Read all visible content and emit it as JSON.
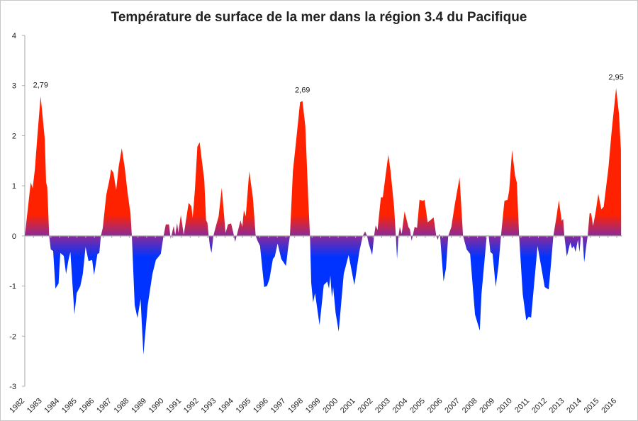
{
  "chart_data": {
    "type": "area",
    "title": "Température de surface de la mer dans la région 3.4 du Pacifique",
    "xlabel": "",
    "ylabel": "",
    "ylim": [
      -3,
      4
    ],
    "yticks": [
      "-3",
      "-2",
      "-1",
      "0",
      "1",
      "2",
      "3",
      "4"
    ],
    "xlim": [
      1982,
      2016.3
    ],
    "xticks": [
      "1982",
      "1983",
      "1984",
      "1985",
      "1986",
      "1987",
      "1988",
      "1989",
      "1990",
      "1991",
      "1992",
      "1993",
      "1994",
      "1995",
      "1996",
      "1997",
      "1998",
      "1999",
      "2000",
      "2001",
      "2002",
      "2003",
      "2004",
      "2005",
      "2006",
      "2007",
      "2008",
      "2009",
      "2010",
      "2011",
      "2012",
      "2013",
      "2014",
      "2015",
      "2016"
    ],
    "grid": false,
    "legend": "none",
    "colors": {
      "positive": "#ff2200",
      "zero": "#8a2a9a",
      "negative": "#0033ff"
    },
    "annotations": [
      {
        "x": 1982.91,
        "y": 2.79,
        "text": "2,79"
      },
      {
        "x": 1997.95,
        "y": 2.69,
        "text": "2,69"
      },
      {
        "x": 2015.96,
        "y": 2.95,
        "text": "2,95"
      }
    ],
    "points": [
      [
        1982.0,
        0
      ],
      [
        1982.34,
        1.07
      ],
      [
        1982.45,
        0.95
      ],
      [
        1982.58,
        1.33
      ],
      [
        1982.72,
        1.99
      ],
      [
        1982.91,
        2.79
      ],
      [
        1983.15,
        1.93
      ],
      [
        1983.22,
        1.07
      ],
      [
        1983.29,
        0.97
      ],
      [
        1983.4,
        0
      ],
      [
        1983.49,
        -0.27
      ],
      [
        1983.63,
        -0.3
      ],
      [
        1983.76,
        -1.05
      ],
      [
        1983.94,
        -0.95
      ],
      [
        1984.04,
        -0.34
      ],
      [
        1984.24,
        -0.4
      ],
      [
        1984.37,
        -0.76
      ],
      [
        1984.51,
        -0.48
      ],
      [
        1984.62,
        -0.32
      ],
      [
        1984.85,
        -1.57
      ],
      [
        1984.98,
        -1.14
      ],
      [
        1985.19,
        -1.0
      ],
      [
        1985.33,
        -0.76
      ],
      [
        1985.49,
        -0.22
      ],
      [
        1985.66,
        -0.5
      ],
      [
        1985.87,
        -0.48
      ],
      [
        1985.98,
        -0.78
      ],
      [
        1986.17,
        -0.36
      ],
      [
        1986.28,
        -0.34
      ],
      [
        1986.37,
        0
      ],
      [
        1986.48,
        0.16
      ],
      [
        1986.68,
        0.82
      ],
      [
        1986.85,
        1.1
      ],
      [
        1986.96,
        1.33
      ],
      [
        1987.09,
        1.26
      ],
      [
        1987.25,
        0.91
      ],
      [
        1987.39,
        1.38
      ],
      [
        1987.57,
        1.75
      ],
      [
        1987.74,
        1.36
      ],
      [
        1987.9,
        0.87
      ],
      [
        1988.07,
        0.44
      ],
      [
        1988.15,
        0
      ],
      [
        1988.31,
        -1.38
      ],
      [
        1988.47,
        -1.64
      ],
      [
        1988.65,
        -1.26
      ],
      [
        1988.81,
        -2.37
      ],
      [
        1989.06,
        -1.38
      ],
      [
        1989.33,
        -0.76
      ],
      [
        1989.53,
        -0.48
      ],
      [
        1989.81,
        -0.36
      ],
      [
        1989.97,
        0
      ],
      [
        1990.1,
        0.23
      ],
      [
        1990.28,
        0.23
      ],
      [
        1990.38,
        -0.06
      ],
      [
        1990.55,
        0.2
      ],
      [
        1990.64,
        0.02
      ],
      [
        1990.75,
        0.26
      ],
      [
        1990.82,
        0.06
      ],
      [
        1990.96,
        0.42
      ],
      [
        1991.13,
        0.02
      ],
      [
        1991.41,
        0.66
      ],
      [
        1991.57,
        0.59
      ],
      [
        1991.64,
        0.36
      ],
      [
        1991.77,
        0.93
      ],
      [
        1991.91,
        1.78
      ],
      [
        1992.04,
        1.87
      ],
      [
        1992.31,
        1.11
      ],
      [
        1992.41,
        0.31
      ],
      [
        1992.49,
        0.26
      ],
      [
        1992.56,
        0
      ],
      [
        1992.63,
        -0.2
      ],
      [
        1992.72,
        -0.34
      ],
      [
        1992.83,
        0
      ],
      [
        1992.95,
        0.16
      ],
      [
        1993.13,
        0.39
      ],
      [
        1993.31,
        0.96
      ],
      [
        1993.53,
        0.06
      ],
      [
        1993.67,
        0.23
      ],
      [
        1993.85,
        0.25
      ],
      [
        1993.98,
        0.06
      ],
      [
        1994.08,
        -0.12
      ],
      [
        1994.21,
        0.06
      ],
      [
        1994.39,
        0.31
      ],
      [
        1994.49,
        0.18
      ],
      [
        1994.58,
        0.51
      ],
      [
        1994.69,
        0.39
      ],
      [
        1994.89,
        1.29
      ],
      [
        1995.1,
        0.77
      ],
      [
        1995.26,
        0
      ],
      [
        1995.37,
        -0.1
      ],
      [
        1995.51,
        -0.2
      ],
      [
        1995.75,
        -1.02
      ],
      [
        1995.91,
        -1.0
      ],
      [
        1996.05,
        -0.86
      ],
      [
        1996.25,
        -0.46
      ],
      [
        1996.36,
        -0.41
      ],
      [
        1996.52,
        -0.15
      ],
      [
        1996.73,
        -0.46
      ],
      [
        1997.0,
        -0.6
      ],
      [
        1997.13,
        -0.22
      ],
      [
        1997.23,
        0
      ],
      [
        1997.4,
        1.29
      ],
      [
        1997.61,
        1.99
      ],
      [
        1997.81,
        2.67
      ],
      [
        1997.95,
        2.69
      ],
      [
        1998.11,
        2.19
      ],
      [
        1998.29,
        0.65
      ],
      [
        1998.38,
        0
      ],
      [
        1998.45,
        -0.93
      ],
      [
        1998.56,
        -1.33
      ],
      [
        1998.67,
        -1.14
      ],
      [
        1998.93,
        -1.78
      ],
      [
        1999.17,
        -0.98
      ],
      [
        1999.37,
        -0.91
      ],
      [
        1999.47,
        -1.05
      ],
      [
        1999.55,
        -0.79
      ],
      [
        1999.64,
        -1.23
      ],
      [
        1999.71,
        -1.02
      ],
      [
        1999.85,
        -1.53
      ],
      [
        2000.03,
        -1.91
      ],
      [
        2000.32,
        -0.76
      ],
      [
        2000.6,
        -0.38
      ],
      [
        2000.93,
        -0.98
      ],
      [
        2001.21,
        -0.32
      ],
      [
        2001.41,
        0
      ],
      [
        2001.55,
        0.09
      ],
      [
        2001.66,
        0
      ],
      [
        2001.75,
        -0.15
      ],
      [
        2001.95,
        -0.38
      ],
      [
        2002.06,
        0
      ],
      [
        2002.15,
        0.21
      ],
      [
        2002.26,
        0.12
      ],
      [
        2002.45,
        0.77
      ],
      [
        2002.56,
        0.77
      ],
      [
        2002.7,
        1.15
      ],
      [
        2002.88,
        1.62
      ],
      [
        2003.01,
        1.29
      ],
      [
        2003.21,
        0.58
      ],
      [
        2003.31,
        0
      ],
      [
        2003.38,
        -0.46
      ],
      [
        2003.46,
        0
      ],
      [
        2003.54,
        0.18
      ],
      [
        2003.65,
        0.04
      ],
      [
        2003.81,
        0.49
      ],
      [
        2004.03,
        0.18
      ],
      [
        2004.12,
        0.13
      ],
      [
        2004.22,
        -0.1
      ],
      [
        2004.39,
        0.18
      ],
      [
        2004.53,
        0.16
      ],
      [
        2004.67,
        0.72
      ],
      [
        2004.87,
        0.7
      ],
      [
        2004.96,
        0.72
      ],
      [
        2005.14,
        0.27
      ],
      [
        2005.28,
        0.31
      ],
      [
        2005.48,
        0.37
      ],
      [
        2005.63,
        0
      ],
      [
        2005.73,
        -0.08
      ],
      [
        2005.79,
        0.04
      ],
      [
        2005.85,
        0
      ],
      [
        2006.05,
        -0.91
      ],
      [
        2006.19,
        -0.65
      ],
      [
        2006.32,
        0
      ],
      [
        2006.5,
        0.18
      ],
      [
        2006.7,
        0.63
      ],
      [
        2006.97,
        1.17
      ],
      [
        2007.17,
        0
      ],
      [
        2007.38,
        -0.27
      ],
      [
        2007.58,
        -0.36
      ],
      [
        2007.86,
        -1.57
      ],
      [
        2008.13,
        -1.89
      ],
      [
        2008.23,
        -1.16
      ],
      [
        2008.53,
        0
      ],
      [
        2008.64,
        0.01
      ],
      [
        2008.74,
        -0.32
      ],
      [
        2008.87,
        -0.36
      ],
      [
        2009.05,
        -1.02
      ],
      [
        2009.21,
        -0.57
      ],
      [
        2009.35,
        0
      ],
      [
        2009.55,
        0.7
      ],
      [
        2009.73,
        0.72
      ],
      [
        2009.82,
        0.91
      ],
      [
        2009.99,
        1.71
      ],
      [
        2010.16,
        1.2
      ],
      [
        2010.26,
        1.06
      ],
      [
        2010.39,
        0
      ],
      [
        2010.6,
        -1.16
      ],
      [
        2010.8,
        -1.68
      ],
      [
        2010.95,
        -1.61
      ],
      [
        2011.08,
        -1.63
      ],
      [
        2011.45,
        -0.2
      ],
      [
        2011.68,
        -0.65
      ],
      [
        2011.86,
        -1.02
      ],
      [
        2012.09,
        -1.07
      ],
      [
        2012.2,
        -0.65
      ],
      [
        2012.36,
        0
      ],
      [
        2012.54,
        0.39
      ],
      [
        2012.67,
        0.71
      ],
      [
        2012.84,
        0.3
      ],
      [
        2012.92,
        0.34
      ],
      [
        2012.99,
        0
      ],
      [
        2013.13,
        -0.41
      ],
      [
        2013.33,
        -0.13
      ],
      [
        2013.43,
        -0.25
      ],
      [
        2013.54,
        -0.2
      ],
      [
        2013.63,
        -0.32
      ],
      [
        2013.77,
        -0.08
      ],
      [
        2013.86,
        -0.32
      ],
      [
        2013.94,
        0
      ],
      [
        2014.04,
        -0.03
      ],
      [
        2014.13,
        -0.53
      ],
      [
        2014.24,
        -0.22
      ],
      [
        2014.33,
        0
      ],
      [
        2014.44,
        0.45
      ],
      [
        2014.53,
        0.45
      ],
      [
        2014.64,
        0.2
      ],
      [
        2014.78,
        0.46
      ],
      [
        2014.94,
        0.84
      ],
      [
        2015.11,
        0.53
      ],
      [
        2015.25,
        0.58
      ],
      [
        2015.52,
        1.36
      ],
      [
        2015.7,
        2.07
      ],
      [
        2015.96,
        2.95
      ],
      [
        2016.13,
        2.43
      ],
      [
        2016.24,
        1.72
      ],
      [
        2016.25,
        0
      ]
    ]
  }
}
